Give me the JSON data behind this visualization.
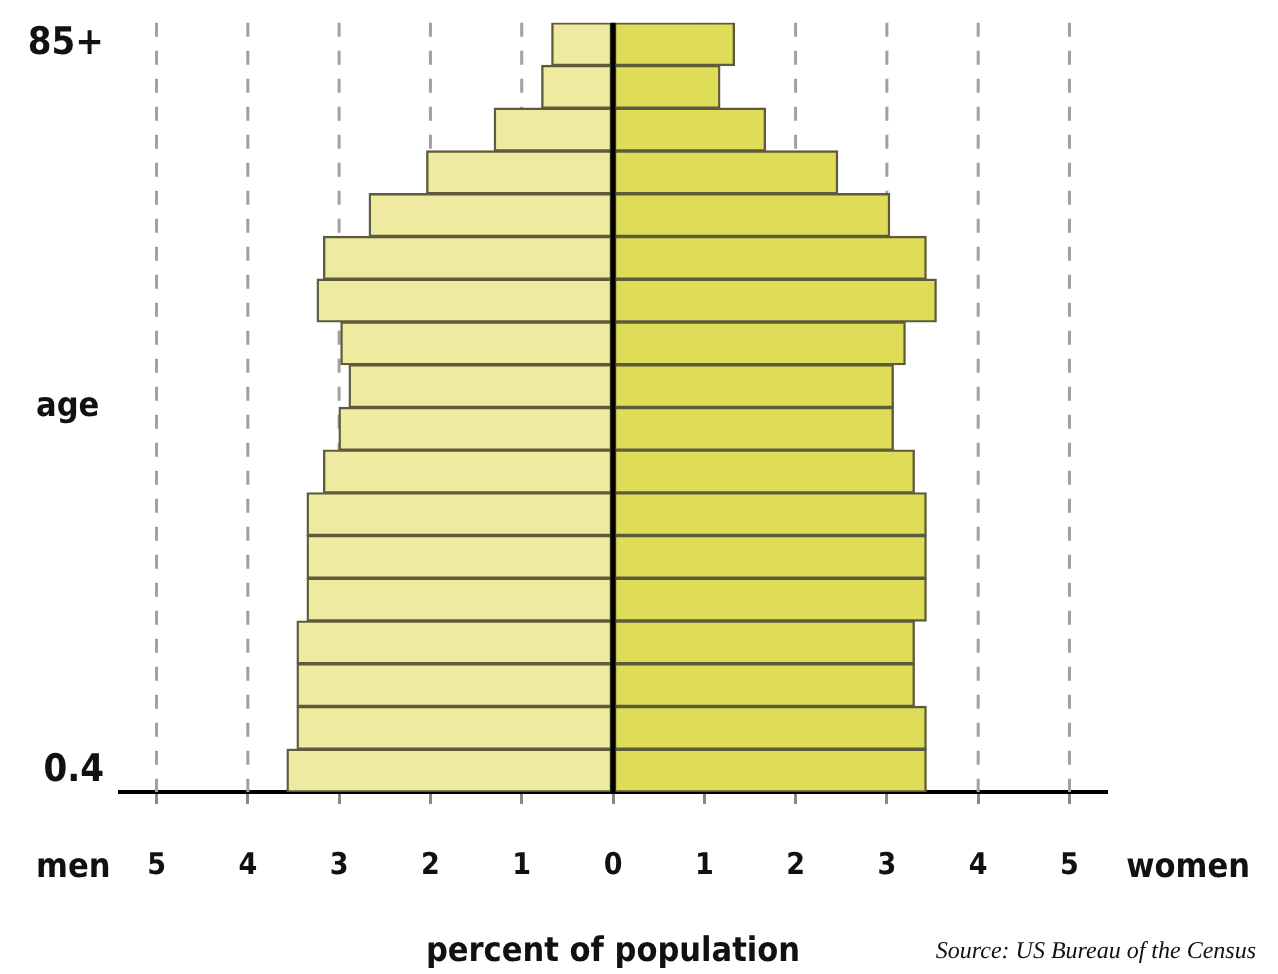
{
  "chart_data": {
    "type": "bar",
    "orientation": "horizontal",
    "stacked": true,
    "categories": [
      "85+",
      null,
      null,
      null,
      null,
      null,
      null,
      null,
      null,
      null,
      null,
      null,
      null,
      null,
      null,
      null,
      null,
      "0.4"
    ],
    "series": [
      {
        "color": "#eeeaa0",
        "values": [
          -0.67,
          -0.78,
          -1.3,
          -2.04,
          -2.67,
          -3.17,
          -3.24,
          -2.98,
          -2.89,
          -3.0,
          -3.17,
          -3.35,
          -3.35,
          -3.35,
          -3.46,
          -3.46,
          -3.46,
          -3.57
        ]
      },
      {
        "color": "#dfdc58",
        "values": [
          1.33,
          1.17,
          1.67,
          2.46,
          3.03,
          3.43,
          3.54,
          3.2,
          3.07,
          3.07,
          3.3,
          3.43,
          3.43,
          3.43,
          3.3,
          3.3,
          3.43,
          3.43
        ]
      }
    ],
    "xlim": [
      -5.4,
      5.4
    ],
    "xticks": [
      {
        "value": -5,
        "label": "5"
      },
      {
        "value": -4,
        "label": "4"
      },
      {
        "value": -3,
        "label": "3"
      },
      {
        "value": -2,
        "label": "2"
      },
      {
        "value": -1,
        "label": "1"
      },
      0,
      1,
      2,
      3,
      4,
      5
    ],
    "xlabel": "percent of population",
    "ylabel": "age",
    "grid": "x",
    "ref_lines": [
      {
        "axis": "x",
        "value": 0,
        "color": "#000000"
      }
    ],
    "annotations": [
      "men",
      "women",
      "Source: US Bureau of the Census"
    ]
  }
}
